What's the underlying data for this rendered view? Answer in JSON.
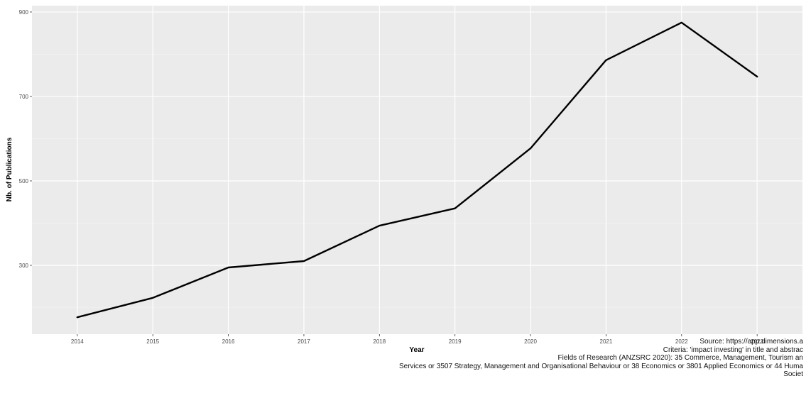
{
  "chart_data": {
    "type": "line",
    "title": "",
    "xlabel": "Year",
    "ylabel": "Nb. of Publications",
    "x": [
      2014,
      2015,
      2016,
      2017,
      2018,
      2019,
      2020,
      2021,
      2022,
      2023
    ],
    "series": [
      {
        "values": [
          177,
          223,
          295,
          310,
          394,
          435,
          577,
          786,
          875,
          747
        ]
      }
    ],
    "xlim": [
      2013.4,
      2023.6
    ],
    "ylim": [
      137,
      915
    ],
    "yticks": [
      300,
      500,
      700,
      900
    ],
    "line_color": "#000000",
    "panel_color": "#ebebeb",
    "grid": true,
    "legend": "none"
  },
  "caption": {
    "lines": [
      "Source: https://app.dimensions.a",
      "Criteria: 'impact investing' in title and abstrac",
      "Fields of Research (ANZSRC 2020): 35 Commerce, Management, Tourism an",
      "Services or 3507 Strategy, Management and Organisational Behaviour or 38 Economics or 3801 Applied Economics or 44 Huma",
      "Societ"
    ]
  }
}
